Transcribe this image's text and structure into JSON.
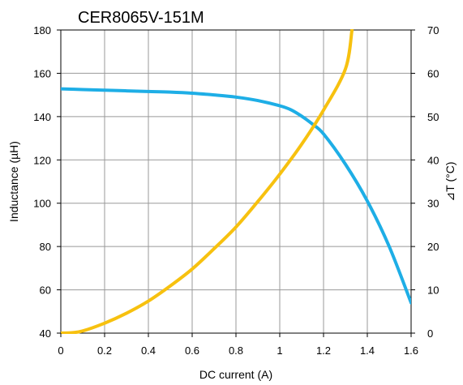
{
  "chart_data": {
    "type": "line",
    "title": "CER8065V-151M",
    "xlabel": "DC current (A)",
    "ylabel_left": "Inductance (µH)",
    "ylabel_right": "⊿T (°C)",
    "xlim": [
      0,
      1.6
    ],
    "ylim_left": [
      40,
      180
    ],
    "ylim_right": [
      0,
      70
    ],
    "x_ticks": [
      "0",
      "0.2",
      "0.4",
      "0.6",
      "0.8",
      "1",
      "1.2",
      "1.4",
      "1.6"
    ],
    "y_left_ticks": [
      "40",
      "60",
      "80",
      "100",
      "120",
      "140",
      "160",
      "180"
    ],
    "y_right_ticks": [
      "0",
      "10",
      "20",
      "30",
      "40",
      "50",
      "60",
      "70"
    ],
    "grid": true,
    "series": [
      {
        "axis": "left",
        "color": "#1eaee6",
        "x": [
          0,
          0.1,
          0.2,
          0.3,
          0.4,
          0.5,
          0.6,
          0.7,
          0.8,
          0.9,
          1.0,
          1.05,
          1.1,
          1.15,
          1.2,
          1.3,
          1.4,
          1.5,
          1.6
        ],
        "y": [
          152.8,
          152.5,
          152.2,
          151.9,
          151.6,
          151.3,
          150.8,
          150.0,
          149.0,
          147.4,
          145.0,
          143.2,
          140.2,
          136.5,
          132.0,
          118.0,
          101.0,
          80.0,
          54.0
        ]
      },
      {
        "axis": "right",
        "color": "#f7c10f",
        "x": [
          0,
          0.05,
          0.1,
          0.2,
          0.3,
          0.4,
          0.5,
          0.6,
          0.7,
          0.8,
          0.9,
          1.0,
          1.1,
          1.2,
          1.3,
          1.33
        ],
        "y": [
          0,
          0.1,
          0.5,
          2.3,
          4.6,
          7.4,
          10.9,
          14.8,
          19.5,
          24.5,
          30.4,
          36.7,
          43.6,
          51.5,
          61.0,
          70.0
        ]
      }
    ]
  }
}
